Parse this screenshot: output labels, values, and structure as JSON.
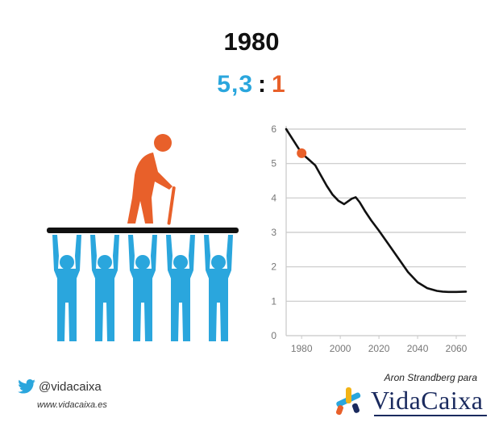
{
  "header": {
    "year": "1980",
    "workers": "5,3",
    "separator": ":",
    "retired": "1"
  },
  "colors": {
    "workers": "#2aa6dd",
    "retired": "#e8602a",
    "line": "#111111",
    "grid": "#c8c8c8",
    "brand": "#1a2a5e"
  },
  "footer": {
    "twitter_handle": "@vidacaixa",
    "website": "www.vidacaixa.es",
    "credit": "Aron Strandberg para",
    "brand_name": "VidaCaixa",
    "icons": [
      "twitter-bird-icon",
      "vidacaixa-star-logo",
      "elderly-person-icon",
      "worker-figure-icon"
    ]
  },
  "chart_data": {
    "type": "line",
    "title": "",
    "xlabel": "",
    "ylabel": "",
    "xlim": [
      1972,
      2065
    ],
    "ylim": [
      0,
      6
    ],
    "x_ticks": [
      "1980",
      "2000",
      "2020",
      "2040",
      "2060"
    ],
    "y_ticks": [
      "0",
      "1",
      "2",
      "3",
      "4",
      "5",
      "6"
    ],
    "grid": "horizontal",
    "series": [
      {
        "x": [
          1972,
          1976,
          1980,
          1984,
          1987,
          1990,
          1993,
          1996,
          1999,
          2002,
          2004,
          2006,
          2008,
          2010,
          2013,
          2016,
          2020,
          2025,
          2030,
          2035,
          2040,
          2045,
          2050,
          2053,
          2056,
          2060,
          2065
        ],
        "values": [
          6.0,
          5.65,
          5.3,
          5.1,
          4.95,
          4.65,
          4.35,
          4.1,
          3.92,
          3.82,
          3.9,
          3.98,
          4.02,
          3.88,
          3.6,
          3.35,
          3.05,
          2.65,
          2.25,
          1.85,
          1.55,
          1.38,
          1.3,
          1.28,
          1.27,
          1.27,
          1.28
        ]
      }
    ],
    "highlight": {
      "x": 1980,
      "value": 5.3
    }
  }
}
